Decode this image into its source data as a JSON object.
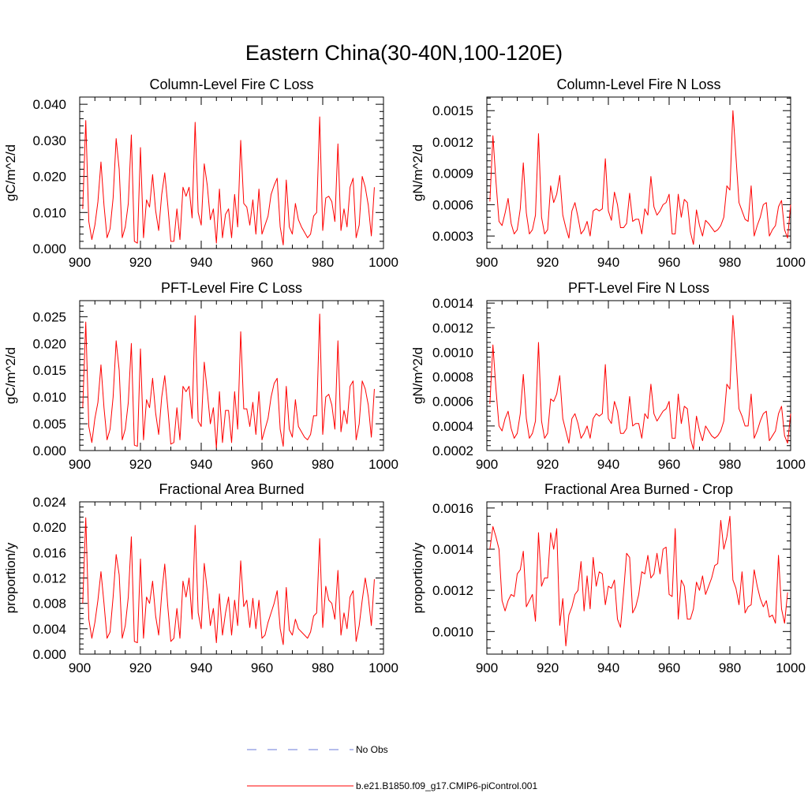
{
  "title": "Eastern China(30-40N,100-120E)",
  "colors": {
    "series": "#ff0000",
    "obs": "#6b7bd8",
    "axis": "#000000"
  },
  "legend": {
    "obs_label": "No Obs",
    "series_label": "b.e21.B1850.f09_g17.CMIP6-piControl.001"
  },
  "chart_data": [
    {
      "type": "line",
      "title": "Column-Level Fire C Loss",
      "ylabel": "gC/m^2/d",
      "xlim": [
        900,
        1000
      ],
      "ylim": [
        0.0,
        0.042
      ],
      "xticks": [
        900,
        920,
        940,
        960,
        980,
        1000
      ],
      "xtick_labels": [
        "900",
        "920",
        "940",
        "960",
        "980",
        "1000"
      ],
      "yticks": [
        0.0,
        0.01,
        0.02,
        0.03,
        0.04
      ],
      "ytick_labels": [
        "0.000",
        "0.010",
        "0.020",
        "0.030",
        "0.040"
      ],
      "x_start": 901,
      "series": [
        {
          "name": "b.e21.B1850.f09_g17.CMIP6-piControl.001",
          "values": [
            0.011,
            0.0355,
            0.0075,
            0.0025,
            0.0065,
            0.013,
            0.024,
            0.012,
            0.003,
            0.0055,
            0.014,
            0.0305,
            0.022,
            0.003,
            0.006,
            0.0125,
            0.0315,
            0.002,
            0.0015,
            0.028,
            0.003,
            0.0135,
            0.0115,
            0.0205,
            0.0105,
            0.005,
            0.015,
            0.021,
            0.012,
            0.002,
            0.002,
            0.011,
            0.0025,
            0.017,
            0.0145,
            0.017,
            0.0085,
            0.035,
            0.01,
            0.0065,
            0.0235,
            0.0175,
            0.008,
            0.011,
            0.0015,
            0.0165,
            0.003,
            0.0095,
            0.011,
            0.003,
            0.015,
            0.006,
            0.03,
            0.0125,
            0.0115,
            0.0065,
            0.0135,
            0.004,
            0.0165,
            0.004,
            0.0065,
            0.009,
            0.015,
            0.0175,
            0.0195,
            0.006,
            0.001,
            0.019,
            0.006,
            0.004,
            0.0125,
            0.008,
            0.006,
            0.0045,
            0.003,
            0.004,
            0.009,
            0.01,
            0.0365,
            0.005,
            0.014,
            0.0145,
            0.013,
            0.0075,
            0.029,
            0.005,
            0.011,
            0.006,
            0.017,
            0.0195,
            0.003,
            0.0065,
            0.02,
            0.017,
            0.012,
            0.0035,
            0.017
          ]
        }
      ]
    },
    {
      "type": "line",
      "title": "Column-Level Fire N Loss",
      "ylabel": "gN/m^2/d",
      "xlim": [
        900,
        1000
      ],
      "ylim": [
        0.00018,
        0.00163
      ],
      "xticks": [
        900,
        920,
        940,
        960,
        980,
        1000
      ],
      "xtick_labels": [
        "900",
        "920",
        "940",
        "960",
        "980",
        "1000"
      ],
      "yticks": [
        0.0003,
        0.0006,
        0.0009,
        0.0012,
        0.0015
      ],
      "ytick_labels": [
        "0.0003",
        "0.0006",
        "0.0009",
        "0.0012",
        "0.0015"
      ],
      "x_start": 901,
      "series": [
        {
          "name": "b.e21.B1850.f09_g17.CMIP6-piControl.001",
          "values": [
            0.00063,
            0.00126,
            0.00082,
            0.00044,
            0.0004,
            0.00052,
            0.00066,
            0.00042,
            0.00032,
            0.00036,
            0.00056,
            0.001,
            0.00052,
            0.00032,
            0.00036,
            0.0005,
            0.00128,
            0.00048,
            0.00032,
            0.00036,
            0.00078,
            0.00062,
            0.0007,
            0.00088,
            0.0005,
            0.00038,
            0.00028,
            0.00054,
            0.00062,
            0.00048,
            0.00032,
            0.00036,
            0.00044,
            0.0003,
            0.00054,
            0.00056,
            0.00054,
            0.00056,
            0.00104,
            0.00054,
            0.00045,
            0.00072,
            0.0006,
            0.00038,
            0.00038,
            0.00042,
            0.00071,
            0.00044,
            0.00046,
            0.00046,
            0.00032,
            0.00056,
            0.0005,
            0.00087,
            0.00058,
            0.0005,
            0.00054,
            0.0006,
            0.00062,
            0.0007,
            0.00032,
            0.00032,
            0.0007,
            0.00048,
            0.00065,
            0.00062,
            0.00034,
            0.00022,
            0.00055,
            0.0004,
            0.0003,
            0.00045,
            0.00042,
            0.00038,
            0.00034,
            0.00036,
            0.0004,
            0.00048,
            0.00078,
            0.00074,
            0.0015,
            0.00106,
            0.00062,
            0.00054,
            0.00046,
            0.00044,
            0.00078,
            0.0003,
            0.0004,
            0.00048,
            0.0006,
            0.00062,
            0.0003,
            0.00036,
            0.0004,
            0.00058,
            0.00064,
            0.00036,
            0.00028,
            0.0006
          ]
        }
      ]
    },
    {
      "type": "line",
      "title": "PFT-Level Fire C Loss",
      "ylabel": "gC/m^2/d",
      "xlim": [
        900,
        1000
      ],
      "ylim": [
        0.0,
        0.028
      ],
      "xticks": [
        900,
        920,
        940,
        960,
        980,
        1000
      ],
      "xtick_labels": [
        "900",
        "920",
        "940",
        "960",
        "980",
        "1000"
      ],
      "yticks": [
        0.0,
        0.005,
        0.01,
        0.015,
        0.02,
        0.025
      ],
      "ytick_labels": [
        "0.000",
        "0.005",
        "0.010",
        "0.015",
        "0.020",
        "0.025"
      ],
      "x_start": 901,
      "series": [
        {
          "name": "b.e21.B1850.f09_g17.CMIP6-piControl.001",
          "values": [
            0.008,
            0.024,
            0.0045,
            0.0015,
            0.006,
            0.009,
            0.016,
            0.008,
            0.002,
            0.004,
            0.01,
            0.0205,
            0.015,
            0.002,
            0.004,
            0.009,
            0.02,
            0.001,
            0.0008,
            0.019,
            0.002,
            0.0095,
            0.008,
            0.0135,
            0.007,
            0.003,
            0.01,
            0.014,
            0.008,
            0.0012,
            0.0015,
            0.008,
            0.002,
            0.012,
            0.011,
            0.012,
            0.006,
            0.0252,
            0.0055,
            0.0045,
            0.0165,
            0.011,
            0.005,
            0.008,
            0.0005,
            0.011,
            0.0015,
            0.0075,
            0.0075,
            0.0015,
            0.011,
            0.004,
            0.0222,
            0.0078,
            0.0078,
            0.0045,
            0.009,
            0.003,
            0.011,
            0.002,
            0.004,
            0.006,
            0.01,
            0.0125,
            0.0135,
            0.004,
            0.0008,
            0.012,
            0.004,
            0.0025,
            0.0095,
            0.0045,
            0.0035,
            0.0025,
            0.002,
            0.003,
            0.0065,
            0.0065,
            0.0255,
            0.003,
            0.01,
            0.0105,
            0.0085,
            0.004,
            0.0205,
            0.0035,
            0.0075,
            0.005,
            0.012,
            0.013,
            0.002,
            0.005,
            0.013,
            0.0115,
            0.0085,
            0.0025,
            0.0115
          ]
        }
      ]
    },
    {
      "type": "line",
      "title": "PFT-Level Fire N Loss",
      "ylabel": "gN/m^2/d",
      "xlim": [
        900,
        1000
      ],
      "ylim": [
        0.0002,
        0.00142
      ],
      "xticks": [
        900,
        920,
        940,
        960,
        980,
        1000
      ],
      "xtick_labels": [
        "900",
        "920",
        "940",
        "960",
        "980",
        "1000"
      ],
      "yticks": [
        0.0002,
        0.0004,
        0.0006,
        0.0008,
        0.001,
        0.0012,
        0.0014
      ],
      "ytick_labels": [
        "0.0002",
        "0.0004",
        "0.0006",
        "0.0008",
        "0.0010",
        "0.0012",
        "0.0014"
      ],
      "x_start": 901,
      "series": [
        {
          "name": "b.e21.B1850.f09_g17.CMIP6-piControl.001",
          "values": [
            0.00058,
            0.00106,
            0.0007,
            0.0004,
            0.00036,
            0.00046,
            0.00052,
            0.00038,
            0.0003,
            0.00034,
            0.0005,
            0.00082,
            0.00046,
            0.0003,
            0.00034,
            0.00044,
            0.00108,
            0.00044,
            0.0003,
            0.00034,
            0.00062,
            0.0006,
            0.00066,
            0.00081,
            0.00046,
            0.00036,
            0.00026,
            0.00046,
            0.0005,
            0.00042,
            0.0003,
            0.00034,
            0.0004,
            0.0003,
            0.00046,
            0.0005,
            0.00048,
            0.0005,
            0.0009,
            0.00046,
            0.00042,
            0.0006,
            0.00052,
            0.00034,
            0.00034,
            0.00038,
            0.00064,
            0.0004,
            0.00042,
            0.00042,
            0.0003,
            0.0005,
            0.00046,
            0.00074,
            0.0005,
            0.00044,
            0.00048,
            0.00052,
            0.00054,
            0.0006,
            0.0003,
            0.0003,
            0.00066,
            0.00042,
            0.00056,
            0.00054,
            0.0003,
            0.00021,
            0.00048,
            0.00036,
            0.00028,
            0.0004,
            0.00036,
            0.00032,
            0.0003,
            0.00032,
            0.00036,
            0.00044,
            0.00074,
            0.0007,
            0.0013,
            0.00096,
            0.00054,
            0.00048,
            0.0004,
            0.0004,
            0.00066,
            0.0003,
            0.00036,
            0.00044,
            0.0005,
            0.00052,
            0.00028,
            0.00032,
            0.00036,
            0.0005,
            0.00056,
            0.00032,
            0.00026,
            0.0005
          ]
        }
      ]
    },
    {
      "type": "line",
      "title": "Fractional Area Burned",
      "ylabel": "proportion/y",
      "xlim": [
        900,
        1000
      ],
      "ylim": [
        0.0,
        0.024
      ],
      "xticks": [
        900,
        920,
        940,
        960,
        980,
        1000
      ],
      "xtick_labels": [
        "900",
        "920",
        "940",
        "960",
        "980",
        "1000"
      ],
      "yticks": [
        0.0,
        0.004,
        0.008,
        0.012,
        0.016,
        0.02,
        0.024
      ],
      "ytick_labels": [
        "0.000",
        "0.004",
        "0.008",
        "0.012",
        "0.016",
        "0.020",
        "0.024"
      ],
      "x_start": 901,
      "series": [
        {
          "name": "b.e21.B1850.f09_g17.CMIP6-piControl.001",
          "values": [
            0.008,
            0.0215,
            0.0055,
            0.0025,
            0.005,
            0.0085,
            0.013,
            0.008,
            0.0025,
            0.0035,
            0.009,
            0.0157,
            0.0125,
            0.0025,
            0.0045,
            0.009,
            0.0185,
            0.002,
            0.0018,
            0.015,
            0.0025,
            0.009,
            0.008,
            0.0115,
            0.006,
            0.003,
            0.0095,
            0.0142,
            0.0075,
            0.002,
            0.0025,
            0.0072,
            0.0025,
            0.0115,
            0.009,
            0.012,
            0.0055,
            0.0203,
            0.0065,
            0.004,
            0.0143,
            0.01,
            0.0045,
            0.0072,
            0.0018,
            0.0095,
            0.003,
            0.0065,
            0.009,
            0.003,
            0.0085,
            0.0045,
            0.0147,
            0.0075,
            0.0085,
            0.0042,
            0.0088,
            0.004,
            0.0085,
            0.0025,
            0.003,
            0.005,
            0.0065,
            0.008,
            0.01,
            0.004,
            0.0015,
            0.0105,
            0.0038,
            0.003,
            0.0055,
            0.004,
            0.0035,
            0.003,
            0.0025,
            0.0035,
            0.006,
            0.0065,
            0.0182,
            0.0042,
            0.0107,
            0.0085,
            0.008,
            0.0055,
            0.0132,
            0.003,
            0.0065,
            0.004,
            0.009,
            0.01,
            0.002,
            0.0045,
            0.0085,
            0.012,
            0.009,
            0.0045,
            0.0118
          ]
        }
      ]
    },
    {
      "type": "line",
      "title": "Fractional Area Burned - Crop",
      "ylabel": "proportion/y",
      "xlim": [
        900,
        1000
      ],
      "ylim": [
        0.00089,
        0.00163
      ],
      "xticks": [
        900,
        920,
        940,
        960,
        980,
        1000
      ],
      "xtick_labels": [
        "900",
        "920",
        "940",
        "960",
        "980",
        "1000"
      ],
      "yticks": [
        0.001,
        0.0012,
        0.0014,
        0.0016
      ],
      "ytick_labels": [
        "0.0010",
        "0.0012",
        "0.0014",
        "0.0016"
      ],
      "x_start": 901,
      "series": [
        {
          "name": "b.e21.B1850.f09_g17.CMIP6-piControl.001",
          "values": [
            0.0014,
            0.00151,
            0.00146,
            0.0014,
            0.00115,
            0.0011,
            0.00115,
            0.00118,
            0.00117,
            0.00128,
            0.0013,
            0.00139,
            0.00112,
            0.00115,
            0.00118,
            0.00105,
            0.00148,
            0.00122,
            0.00126,
            0.00126,
            0.00148,
            0.0014,
            0.0015,
            0.00103,
            0.00116,
            0.00093,
            0.00108,
            0.00112,
            0.00118,
            0.0012,
            0.00134,
            0.0011,
            0.00127,
            0.00111,
            0.00136,
            0.00122,
            0.00129,
            0.00128,
            0.00113,
            0.00122,
            0.00121,
            0.00125,
            0.00106,
            0.00102,
            0.00119,
            0.00138,
            0.00136,
            0.00109,
            0.00112,
            0.00118,
            0.00129,
            0.00128,
            0.00137,
            0.00126,
            0.00128,
            0.00138,
            0.00128,
            0.0014,
            0.00141,
            0.00118,
            0.00117,
            0.0015,
            0.00106,
            0.00125,
            0.00122,
            0.00106,
            0.00106,
            0.00111,
            0.00124,
            0.0012,
            0.00127,
            0.00118,
            0.00122,
            0.00126,
            0.00132,
            0.00133,
            0.00154,
            0.0014,
            0.00146,
            0.00156,
            0.00125,
            0.00121,
            0.00113,
            0.00129,
            0.00109,
            0.00112,
            0.00113,
            0.0013,
            0.00122,
            0.00116,
            0.00112,
            0.00115,
            0.00107,
            0.00108,
            0.00104,
            0.00137,
            0.00111,
            0.00104,
            0.00119
          ]
        }
      ]
    }
  ]
}
